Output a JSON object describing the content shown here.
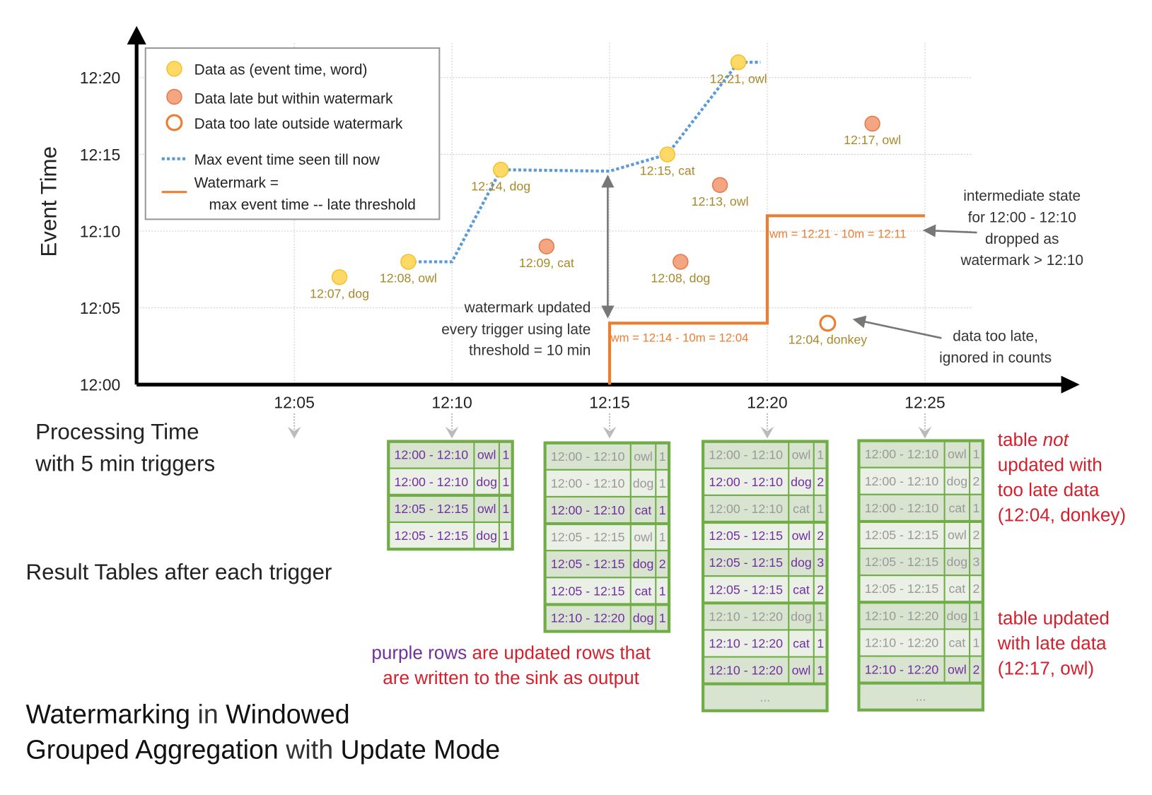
{
  "axes": {
    "y_label": "Event Time",
    "x_label_line1": "Processing Time",
    "x_label_line2": "with 5 min triggers",
    "y_ticks": [
      "12:00",
      "12:05",
      "12:10",
      "12:15",
      "12:20"
    ],
    "x_ticks": [
      "12:05",
      "12:10",
      "12:15",
      "12:20",
      "12:25"
    ]
  },
  "legend": {
    "data": "Data as (event time, word)",
    "late": "Data late but within watermark",
    "too_late": "Data too late outside watermark",
    "max_line": "Max event time seen till now",
    "watermark_1": "Watermark =",
    "watermark_2": "max event time -- late threshold"
  },
  "colors": {
    "on_time": "#ffd966",
    "late": "#f4a582",
    "too_late": "#ed7d31",
    "max_line": "#5b9bd5",
    "watermark": "#ed7d31",
    "updated_row": "#7030a0",
    "unchanged_row": "#999999",
    "table_border": "#70ad47",
    "note": "#d4202c"
  },
  "points": [
    {
      "label": "12:07, dog",
      "processing": "12:06:26",
      "event": "12:07",
      "kind": "on_time"
    },
    {
      "label": "12:08, owl",
      "processing": "12:08:37",
      "event": "12:08",
      "kind": "on_time"
    },
    {
      "label": "12:14, dog",
      "processing": "12:11:33",
      "event": "12:14",
      "kind": "on_time"
    },
    {
      "label": "12:09, cat",
      "processing": "12:13:00",
      "event": "12:09",
      "kind": "late"
    },
    {
      "label": "12:15, cat",
      "processing": "12:16:50",
      "event": "12:15",
      "kind": "on_time"
    },
    {
      "label": "12:08, dog",
      "processing": "12:17:15",
      "event": "12:08",
      "kind": "late"
    },
    {
      "label": "12:13, owl",
      "processing": "12:18:30",
      "event": "12:13",
      "kind": "late"
    },
    {
      "label": "12:21, owl",
      "processing": "12:19:05",
      "event": "12:21",
      "kind": "on_time"
    },
    {
      "label": "12:04, donkey",
      "processing": "12:21:55",
      "event": "12:04",
      "kind": "too_late"
    },
    {
      "label": "12:17, owl",
      "processing": "12:23:20",
      "event": "12:17",
      "kind": "late"
    }
  ],
  "watermark_labels": {
    "first": "wm = 12:14 - 10m = 12:04",
    "second": "wm = 12:21 - 10m = 12:11"
  },
  "annotations": {
    "wm_updated": [
      "watermark updated",
      "every trigger using late",
      "threshold = 10 min"
    ],
    "intermediate": [
      "intermediate state",
      "for 12:00 - 12:10",
      "dropped as",
      "watermark > 12:10"
    ],
    "too_late": [
      "data too late,",
      "ignored in counts"
    ]
  },
  "result_tables_label": "Result Tables after each trigger",
  "tables": [
    {
      "rows": [
        {
          "window": "12:00 - 12:10",
          "word": "owl",
          "count": "1",
          "updated": true
        },
        {
          "window": "12:00 - 12:10",
          "word": "dog",
          "count": "1",
          "updated": true
        },
        {
          "window": "12:05 - 12:15",
          "word": "owl",
          "count": "1",
          "updated": true
        },
        {
          "window": "12:05 - 12:15",
          "word": "dog",
          "count": "1",
          "updated": true
        }
      ]
    },
    {
      "rows": [
        {
          "window": "12:00 - 12:10",
          "word": "owl",
          "count": "1",
          "updated": false
        },
        {
          "window": "12:00 - 12:10",
          "word": "dog",
          "count": "1",
          "updated": false
        },
        {
          "window": "12:00 - 12:10",
          "word": "cat",
          "count": "1",
          "updated": true
        },
        {
          "window": "12:05 - 12:15",
          "word": "owl",
          "count": "1",
          "updated": false
        },
        {
          "window": "12:05 - 12:15",
          "word": "dog",
          "count": "2",
          "updated": true
        },
        {
          "window": "12:05 - 12:15",
          "word": "cat",
          "count": "1",
          "updated": true
        },
        {
          "window": "12:10 - 12:20",
          "word": "dog",
          "count": "1",
          "updated": true
        }
      ]
    },
    {
      "rows": [
        {
          "window": "12:00 - 12:10",
          "word": "owl",
          "count": "1",
          "updated": false
        },
        {
          "window": "12:00 - 12:10",
          "word": "dog",
          "count": "2",
          "updated": true
        },
        {
          "window": "12:00 - 12:10",
          "word": "cat",
          "count": "1",
          "updated": false
        },
        {
          "window": "12:05 - 12:15",
          "word": "owl",
          "count": "2",
          "updated": true
        },
        {
          "window": "12:05 - 12:15",
          "word": "dog",
          "count": "3",
          "updated": true
        },
        {
          "window": "12:05 - 12:15",
          "word": "cat",
          "count": "2",
          "updated": true
        },
        {
          "window": "12:10 - 12:20",
          "word": "dog",
          "count": "1",
          "updated": false
        },
        {
          "window": "12:10 - 12:20",
          "word": "cat",
          "count": "1",
          "updated": true
        },
        {
          "window": "12:10 - 12:20",
          "word": "owl",
          "count": "1",
          "updated": true
        }
      ],
      "ellipsis": "..."
    },
    {
      "rows": [
        {
          "window": "12:00 - 12:10",
          "word": "owl",
          "count": "1",
          "updated": false
        },
        {
          "window": "12:00 - 12:10",
          "word": "dog",
          "count": "2",
          "updated": false
        },
        {
          "window": "12:00 - 12:10",
          "word": "cat",
          "count": "1",
          "updated": false
        },
        {
          "window": "12:05 - 12:15",
          "word": "owl",
          "count": "2",
          "updated": false
        },
        {
          "window": "12:05 - 12:15",
          "word": "dog",
          "count": "3",
          "updated": false
        },
        {
          "window": "12:05 - 12:15",
          "word": "cat",
          "count": "2",
          "updated": false
        },
        {
          "window": "12:10 - 12:20",
          "word": "dog",
          "count": "1",
          "updated": false
        },
        {
          "window": "12:10 - 12:20",
          "word": "cat",
          "count": "1",
          "updated": false
        },
        {
          "window": "12:10 - 12:20",
          "word": "owl",
          "count": "2",
          "updated": true
        }
      ],
      "ellipsis": "..."
    }
  ],
  "notes": {
    "not_updated": [
      "table ",
      "not",
      "updated with",
      "too late data",
      "(12:04, donkey)"
    ],
    "updated": [
      "table updated",
      "with late data",
      "(12:17, owl)"
    ],
    "purple_rows_1": "purple rows",
    "purple_rows_2": " are updated rows that",
    "purple_rows_3": "are written to the sink as output"
  },
  "title": {
    "p1": "Watermarking",
    "p2": " in ",
    "p3": "Windowed",
    "p4": "Grouped Aggregation",
    "p5": " with ",
    "p6": "Update Mode"
  }
}
